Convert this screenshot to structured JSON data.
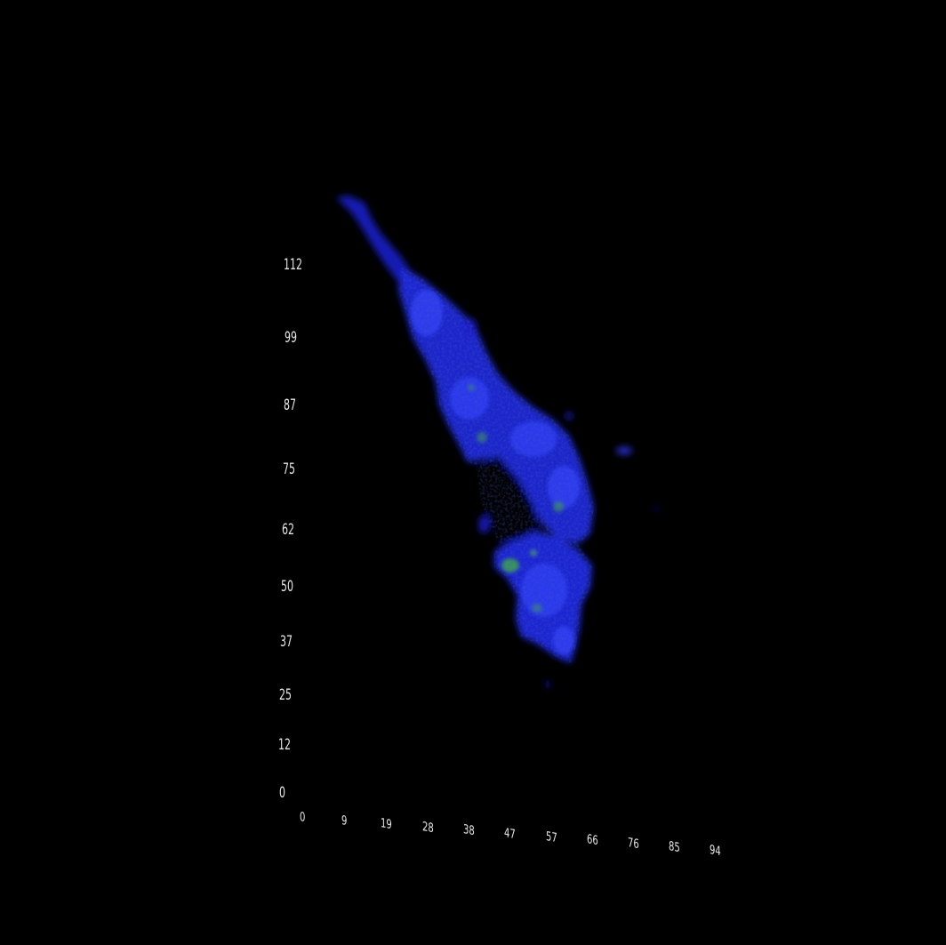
{
  "scene": {
    "background_color": "#000000",
    "label_color": "#e6e6e6",
    "volume_colors": {
      "low": "#1a1fd8",
      "mid": "#2a3cf0",
      "high": "#3fa64a"
    }
  },
  "axes": {
    "y_ticks": [
      "112",
      "99",
      "87",
      "75",
      "62",
      "50",
      "37",
      "25",
      "12",
      "0"
    ],
    "x_ticks": [
      "0",
      "9",
      "19",
      "28",
      "38",
      "47",
      "57",
      "66",
      "76",
      "85",
      "94"
    ]
  }
}
